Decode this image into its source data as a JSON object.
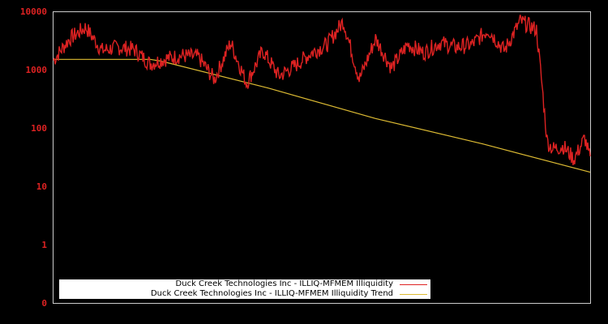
{
  "chart_data": {
    "type": "line",
    "title": "",
    "xlabel": "",
    "ylabel": "",
    "yscale": "log",
    "ylim": [
      0.1,
      10000
    ],
    "yticks": [
      "10000",
      "1000",
      "100",
      "10",
      "1",
      "0"
    ],
    "grid": false,
    "legend_position": "lower-left",
    "series": [
      {
        "name": "Duck Creek Technologies Inc - ILLIQ-MFMEM Illiquidity",
        "color": "#dd2222",
        "x": [
          0,
          0.03,
          0.06,
          0.09,
          0.12,
          0.15,
          0.18,
          0.21,
          0.24,
          0.27,
          0.3,
          0.33,
          0.36,
          0.39,
          0.42,
          0.45,
          0.48,
          0.51,
          0.54,
          0.57,
          0.6,
          0.63,
          0.66,
          0.69,
          0.72,
          0.75,
          0.78,
          0.81,
          0.84,
          0.87,
          0.9,
          0.91,
          0.92,
          0.93,
          0.95,
          0.97,
          0.99,
          1.0
        ],
        "values": [
          1500,
          3500,
          5500,
          2200,
          2500,
          2300,
          1300,
          1600,
          1800,
          1700,
          700,
          3000,
          600,
          2200,
          800,
          1200,
          2000,
          2800,
          7000,
          700,
          3500,
          1100,
          2800,
          2000,
          3000,
          2500,
          2800,
          5000,
          2200,
          7000,
          5000,
          600,
          60,
          45,
          50,
          30,
          70,
          30
        ]
      },
      {
        "name": "Duck Creek Technologies Inc - ILLIQ-MFMEM Illiquidity Trend",
        "color": "#ddbb33",
        "x": [
          0,
          0.18,
          0.2,
          0.4,
          0.6,
          0.8,
          1.0
        ],
        "values": [
          1550,
          1550,
          1450,
          500,
          150,
          55,
          18
        ]
      }
    ]
  },
  "legend": {
    "items": [
      {
        "label": "Duck Creek Technologies Inc - ILLIQ-MFMEM Illiquidity",
        "color": "#dd2222"
      },
      {
        "label": "Duck Creek Technologies Inc - ILLIQ-MFMEM Illiquidity Trend",
        "color": "#ddbb33"
      }
    ]
  },
  "axis": {
    "ytick_labels": [
      "10000",
      "1000",
      "100",
      "10",
      "1",
      "0"
    ]
  }
}
